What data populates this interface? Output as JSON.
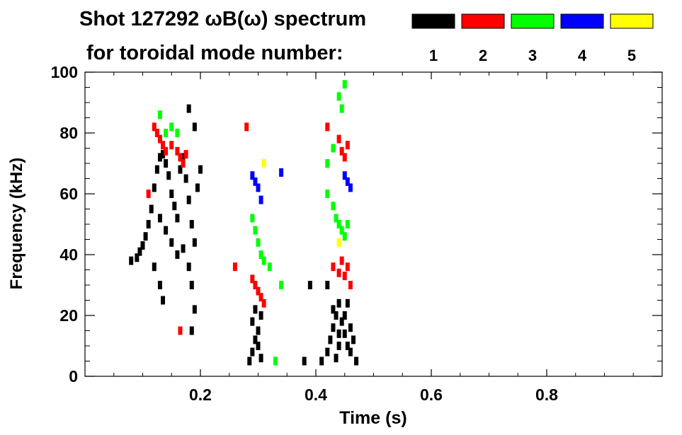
{
  "chart_data": {
    "type": "scatter",
    "title_line1": "Shot 127292 ωB(ω) spectrum",
    "title_line2": "for toroidal mode number:",
    "xlabel": "Time (s)",
    "ylabel": "Frequency (kHz)",
    "xlim": [
      0,
      1.0
    ],
    "ylim": [
      0,
      100
    ],
    "x_ticks": [
      0.2,
      0.4,
      0.6,
      0.8
    ],
    "x_tick_labels": [
      "0.2",
      "0.4",
      "0.6",
      "0.8"
    ],
    "y_ticks": [
      0,
      20,
      40,
      60,
      80,
      100
    ],
    "y_tick_labels": [
      "0",
      "20",
      "40",
      "60",
      "80",
      "100"
    ],
    "legend": [
      {
        "label": "1",
        "color": "#000000"
      },
      {
        "label": "2",
        "color": "#ff0000"
      },
      {
        "label": "3",
        "color": "#00ff00"
      },
      {
        "label": "4",
        "color": "#0000ff"
      },
      {
        "label": "5",
        "color": "#ffff00"
      }
    ],
    "legend_placement": "top-right",
    "grid": false,
    "series": [
      {
        "name": "1",
        "color": "#000000",
        "points": [
          [
            0.08,
            38
          ],
          [
            0.09,
            39
          ],
          [
            0.095,
            41
          ],
          [
            0.1,
            43
          ],
          [
            0.105,
            46
          ],
          [
            0.11,
            50
          ],
          [
            0.115,
            55
          ],
          [
            0.12,
            62
          ],
          [
            0.125,
            68
          ],
          [
            0.13,
            72
          ],
          [
            0.135,
            73
          ],
          [
            0.14,
            70
          ],
          [
            0.145,
            66
          ],
          [
            0.15,
            60
          ],
          [
            0.155,
            56
          ],
          [
            0.16,
            52
          ],
          [
            0.165,
            68
          ],
          [
            0.17,
            72
          ],
          [
            0.175,
            65
          ],
          [
            0.18,
            58
          ],
          [
            0.185,
            50
          ],
          [
            0.19,
            44
          ],
          [
            0.195,
            62
          ],
          [
            0.2,
            68
          ],
          [
            0.13,
            52
          ],
          [
            0.14,
            48
          ],
          [
            0.15,
            44
          ],
          [
            0.16,
            40
          ],
          [
            0.12,
            36
          ],
          [
            0.13,
            30
          ],
          [
            0.135,
            25
          ],
          [
            0.17,
            42
          ],
          [
            0.18,
            36
          ],
          [
            0.185,
            30
          ],
          [
            0.19,
            22
          ],
          [
            0.18,
            88
          ],
          [
            0.19,
            82
          ],
          [
            0.185,
            15
          ],
          [
            0.285,
            5
          ],
          [
            0.29,
            8
          ],
          [
            0.295,
            12
          ],
          [
            0.3,
            15
          ],
          [
            0.305,
            20
          ],
          [
            0.29,
            18
          ],
          [
            0.3,
            10
          ],
          [
            0.305,
            6
          ],
          [
            0.295,
            22
          ],
          [
            0.41,
            5
          ],
          [
            0.42,
            8
          ],
          [
            0.425,
            12
          ],
          [
            0.43,
            16
          ],
          [
            0.435,
            20
          ],
          [
            0.44,
            24
          ],
          [
            0.445,
            18
          ],
          [
            0.45,
            14
          ],
          [
            0.455,
            10
          ],
          [
            0.46,
            8
          ],
          [
            0.465,
            12
          ],
          [
            0.43,
            22
          ],
          [
            0.44,
            10
          ],
          [
            0.45,
            20
          ],
          [
            0.46,
            16
          ],
          [
            0.435,
            6
          ],
          [
            0.455,
            24
          ],
          [
            0.44,
            14
          ],
          [
            0.47,
            5
          ],
          [
            0.42,
            30
          ],
          [
            0.38,
            5
          ],
          [
            0.39,
            30
          ]
        ]
      },
      {
        "name": "2",
        "color": "#ff0000",
        "points": [
          [
            0.12,
            82
          ],
          [
            0.125,
            80
          ],
          [
            0.13,
            78
          ],
          [
            0.135,
            76
          ],
          [
            0.14,
            74
          ],
          [
            0.15,
            76
          ],
          [
            0.16,
            74
          ],
          [
            0.165,
            72
          ],
          [
            0.17,
            70
          ],
          [
            0.175,
            73
          ],
          [
            0.11,
            60
          ],
          [
            0.26,
            36
          ],
          [
            0.29,
            32
          ],
          [
            0.295,
            30
          ],
          [
            0.3,
            28
          ],
          [
            0.305,
            26
          ],
          [
            0.31,
            24
          ],
          [
            0.43,
            36
          ],
          [
            0.44,
            34
          ],
          [
            0.445,
            38
          ],
          [
            0.45,
            33
          ],
          [
            0.455,
            36
          ],
          [
            0.46,
            30
          ],
          [
            0.44,
            78
          ],
          [
            0.445,
            74
          ],
          [
            0.45,
            72
          ],
          [
            0.455,
            76
          ],
          [
            0.42,
            82
          ],
          [
            0.165,
            15
          ],
          [
            0.28,
            82
          ]
        ]
      },
      {
        "name": "3",
        "color": "#00ff00",
        "points": [
          [
            0.13,
            86
          ],
          [
            0.14,
            80
          ],
          [
            0.15,
            82
          ],
          [
            0.16,
            80
          ],
          [
            0.29,
            52
          ],
          [
            0.295,
            48
          ],
          [
            0.3,
            44
          ],
          [
            0.305,
            40
          ],
          [
            0.31,
            38
          ],
          [
            0.42,
            60
          ],
          [
            0.43,
            56
          ],
          [
            0.435,
            52
          ],
          [
            0.44,
            50
          ],
          [
            0.445,
            48
          ],
          [
            0.45,
            46
          ],
          [
            0.455,
            50
          ],
          [
            0.44,
            92
          ],
          [
            0.445,
            88
          ],
          [
            0.45,
            96
          ],
          [
            0.42,
            70
          ],
          [
            0.43,
            75
          ],
          [
            0.32,
            36
          ],
          [
            0.33,
            5
          ],
          [
            0.34,
            30
          ]
        ]
      },
      {
        "name": "4",
        "color": "#0000ff",
        "points": [
          [
            0.29,
            66
          ],
          [
            0.295,
            64
          ],
          [
            0.3,
            62
          ],
          [
            0.305,
            58
          ],
          [
            0.45,
            66
          ],
          [
            0.455,
            64
          ],
          [
            0.46,
            62
          ],
          [
            0.34,
            67
          ]
        ]
      },
      {
        "name": "5",
        "color": "#ffff00",
        "points": [
          [
            0.31,
            70
          ],
          [
            0.44,
            44
          ]
        ]
      }
    ]
  }
}
